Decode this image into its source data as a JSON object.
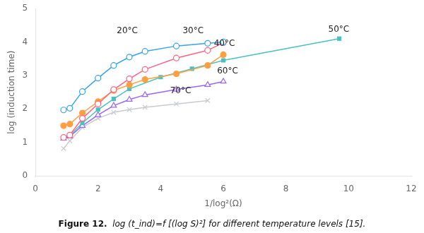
{
  "chart_data": {
    "type": "line",
    "title": "Figure 12.",
    "subtitle": "log (t_ind)=f [(log S)²] for different temperature levels [15].",
    "xlabel": "1/log²(Ω)",
    "ylabel": "log (induction time)",
    "xlim": [
      0,
      12
    ],
    "ylim": [
      0,
      5
    ],
    "xticks": [
      0,
      2,
      4,
      6,
      8,
      10,
      12
    ],
    "yticks": [
      0,
      1,
      2,
      3,
      4,
      5
    ],
    "grid": false,
    "series": [
      {
        "x": [
          0.9,
          1.1,
          1.5,
          2.0,
          2.5,
          3.0,
          3.5,
          4.5,
          5.5,
          6.0
        ],
        "values": [
          1.97,
          2.02,
          2.52,
          2.92,
          3.3,
          3.55,
          3.72,
          3.88,
          3.96,
          4.0
        ],
        "marker": "open_circle"
      },
      {
        "x": [
          0.9,
          1.1,
          1.5,
          2.0,
          2.5,
          3.0,
          3.5,
          4.5,
          5.5,
          6.0
        ],
        "values": [
          1.15,
          1.22,
          1.72,
          2.15,
          2.58,
          2.9,
          3.18,
          3.52,
          3.75,
          3.98
        ],
        "marker": "open_circle"
      },
      {
        "x": [
          0.9,
          1.1,
          1.5,
          2.0,
          2.5,
          3.0,
          3.5,
          4.5,
          5.5,
          6.0
        ],
        "values": [
          1.5,
          1.55,
          1.88,
          2.22,
          2.55,
          2.72,
          2.88,
          3.05,
          3.3,
          3.62
        ],
        "marker": "circle"
      },
      {
        "x": [
          0.9,
          1.1,
          1.5,
          2.0,
          2.5,
          3.0,
          4.0,
          5.0,
          6.0,
          9.7
        ],
        "values": [
          1.15,
          1.2,
          1.58,
          1.98,
          2.3,
          2.6,
          2.95,
          3.2,
          3.45,
          4.1
        ],
        "marker": "square"
      },
      {
        "x": [
          0.9,
          1.1,
          1.5,
          2.0,
          2.5,
          3.0,
          3.5,
          4.5,
          5.5,
          6.0
        ],
        "values": [
          1.12,
          1.18,
          1.5,
          1.82,
          2.1,
          2.28,
          2.42,
          2.58,
          2.72,
          2.82
        ],
        "marker": "open_triangle"
      },
      {
        "x": [
          0.9,
          1.1,
          1.5,
          2.0,
          2.5,
          3.0,
          3.5,
          4.5,
          5.5
        ],
        "values": [
          0.82,
          1.05,
          1.45,
          1.72,
          1.9,
          1.98,
          2.05,
          2.15,
          2.25
        ],
        "marker": "x"
      }
    ],
    "annotations": [
      {
        "text": "20°C",
        "x": 2.6,
        "y": 4.2
      },
      {
        "text": "30°C",
        "x": 4.7,
        "y": 4.2
      },
      {
        "text": "40°C",
        "x": 5.7,
        "y": 3.82
      },
      {
        "text": "50°C",
        "x": 9.35,
        "y": 4.25
      },
      {
        "text": "60°C",
        "x": 5.8,
        "y": 3.0
      },
      {
        "text": "70°C",
        "x": 4.3,
        "y": 2.42
      }
    ]
  }
}
